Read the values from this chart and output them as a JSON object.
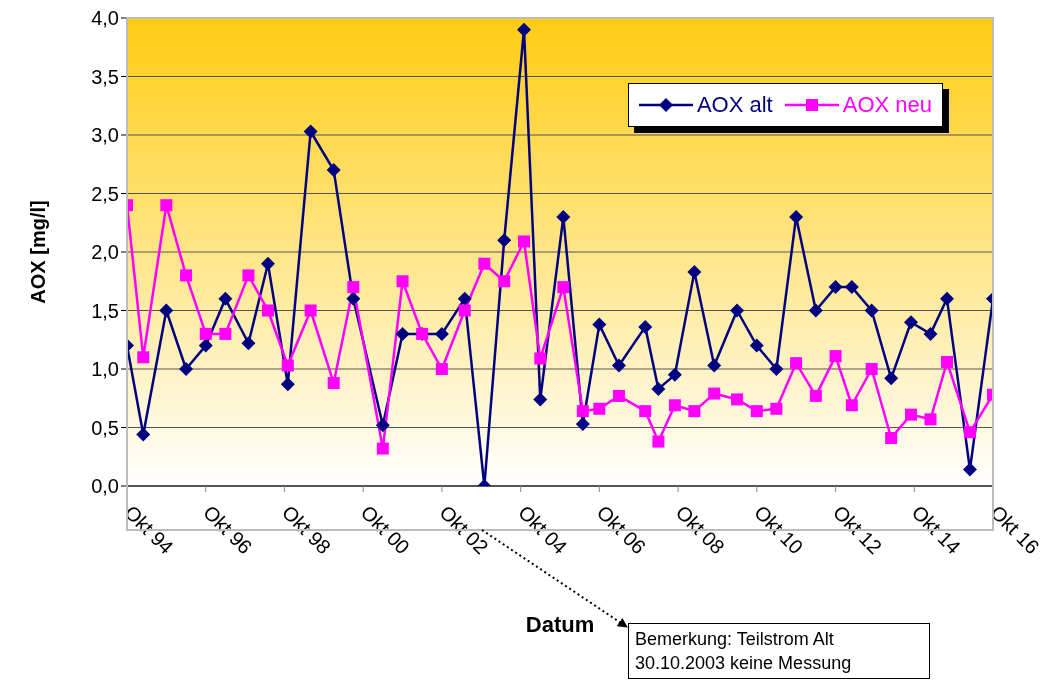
{
  "chart_data": {
    "type": "line",
    "xlabel": "Datum",
    "ylabel": "AOX [mg/l]",
    "x": [
      "1994-10",
      "1995-03",
      "1995-10",
      "1996-04",
      "1996-10",
      "1997-04",
      "1997-11",
      "1998-05",
      "1998-11",
      "1999-06",
      "2000-01",
      "2000-07",
      "2001-04",
      "2001-10",
      "2002-04",
      "2002-10",
      "2003-05",
      "2003-10-30",
      "2004-05",
      "2004-11",
      "2005-04",
      "2005-11",
      "2006-05",
      "2006-10",
      "2007-04",
      "2007-12",
      "2008-04",
      "2008-09",
      "2009-03",
      "2009-09",
      "2010-04",
      "2010-10",
      "2011-04",
      "2011-10",
      "2012-04",
      "2012-10",
      "2013-03",
      "2013-09",
      "2014-03",
      "2014-09",
      "2015-03",
      "2015-08",
      "2016-03",
      "2016-10"
    ],
    "series": [
      {
        "name": "AOX alt",
        "color": "#000080",
        "marker": "diamond",
        "values": [
          1.2,
          0.44,
          1.5,
          1.0,
          1.2,
          1.6,
          1.22,
          1.9,
          0.87,
          3.03,
          2.7,
          1.6,
          0.52,
          1.3,
          1.3,
          1.3,
          1.6,
          0,
          2.1,
          3.9,
          0.74,
          2.3,
          0.53,
          1.38,
          1.03,
          1.36,
          0.83,
          0.95,
          1.83,
          1.03,
          1.5,
          1.2,
          1.0,
          2.3,
          1.5,
          1.7,
          1.7,
          1.5,
          0.92,
          1.4,
          1.3,
          1.6,
          0.14,
          1.6
        ]
      },
      {
        "name": "AOX neu",
        "color": "#ff00ff",
        "marker": "square",
        "values": [
          2.4,
          1.1,
          2.4,
          1.8,
          1.3,
          1.3,
          1.8,
          1.5,
          1.03,
          1.5,
          0.88,
          1.7,
          0.32,
          1.75,
          1.3,
          1.0,
          1.5,
          1.9,
          1.75,
          2.09,
          1.09,
          1.7,
          0.64,
          0.66,
          0.77,
          0.64,
          0.38,
          0.69,
          0.64,
          0.79,
          0.74,
          0.64,
          0.66,
          1.05,
          0.77,
          1.11,
          0.69,
          1.0,
          0.41,
          0.61,
          0.57,
          1.06,
          0.46,
          0.78
        ]
      }
    ],
    "xlim": [
      "1994-10",
      "2016-10"
    ],
    "xticks": [
      {
        "value": "1994-10",
        "label": "Okt 94"
      },
      {
        "value": "1996-10",
        "label": "Okt 96"
      },
      {
        "value": "1998-10",
        "label": "Okt 98"
      },
      {
        "value": "2000-10",
        "label": "Okt 00"
      },
      {
        "value": "2002-10",
        "label": "Okt 02"
      },
      {
        "value": "2004-10",
        "label": "Okt 04"
      },
      {
        "value": "2006-10",
        "label": "Okt 06"
      },
      {
        "value": "2008-10",
        "label": "Okt 08"
      },
      {
        "value": "2010-10",
        "label": "Okt 10"
      },
      {
        "value": "2012-10",
        "label": "Okt 12"
      },
      {
        "value": "2014-10",
        "label": "Okt 14"
      },
      {
        "value": "2016-10",
        "label": "Okt 16"
      }
    ],
    "ylim": [
      0,
      4
    ],
    "yticks": [
      {
        "value": 0,
        "label": "0,0"
      },
      {
        "value": 0.5,
        "label": "0,5"
      },
      {
        "value": 1,
        "label": "1,0"
      },
      {
        "value": 1.5,
        "label": "1,5"
      },
      {
        "value": 2,
        "label": "2,0"
      },
      {
        "value": 2.5,
        "label": "2,5"
      },
      {
        "value": 3,
        "label": "3,0"
      },
      {
        "value": 3.5,
        "label": "3,5"
      },
      {
        "value": 4,
        "label": "4,0"
      }
    ],
    "grid": "y",
    "legend": "top right",
    "line_style": "solid",
    "annotations": [
      "Bemerkung: Teilstrom Alt\n30.10.2003 keine Messung"
    ]
  }
}
